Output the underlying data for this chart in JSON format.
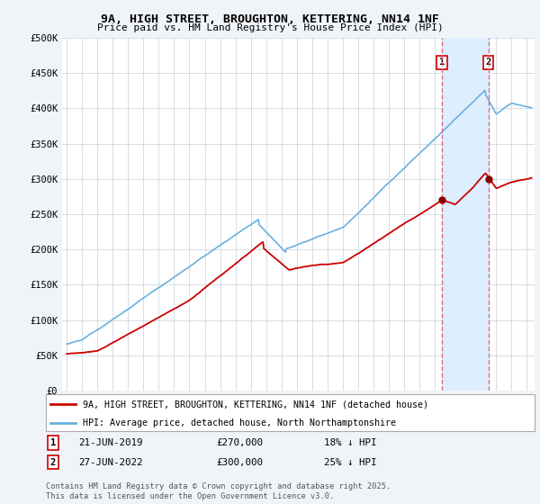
{
  "title": "9A, HIGH STREET, BROUGHTON, KETTERING, NN14 1NF",
  "subtitle": "Price paid vs. HM Land Registry's House Price Index (HPI)",
  "ylim": [
    0,
    500000
  ],
  "yticks": [
    0,
    50000,
    100000,
    150000,
    200000,
    250000,
    300000,
    350000,
    400000,
    450000,
    500000
  ],
  "ytick_labels": [
    "£0",
    "£50K",
    "£100K",
    "£150K",
    "£200K",
    "£250K",
    "£300K",
    "£350K",
    "£400K",
    "£450K",
    "£500K"
  ],
  "xlim_start": 1994.7,
  "xlim_end": 2025.5,
  "hpi_color": "#6ab0e0",
  "price_color": "#cc0000",
  "marker1_date": 2019.47,
  "marker1_price": 270000,
  "marker1_label": "21-JUN-2019",
  "marker1_pct": "18% ↓ HPI",
  "marker2_date": 2022.48,
  "marker2_price": 300000,
  "marker2_label": "27-JUN-2022",
  "marker2_pct": "25% ↓ HPI",
  "legend_line1": "9A, HIGH STREET, BROUGHTON, KETTERING, NN14 1NF (detached house)",
  "legend_line2": "HPI: Average price, detached house, North Northamptonshire",
  "footer": "Contains HM Land Registry data © Crown copyright and database right 2025.\nThis data is licensed under the Open Government Licence v3.0.",
  "background_color": "#f0f4f8",
  "plot_bg_color": "#ffffff",
  "grid_color": "#d0d8e0",
  "shade_color": "#ddeeff"
}
